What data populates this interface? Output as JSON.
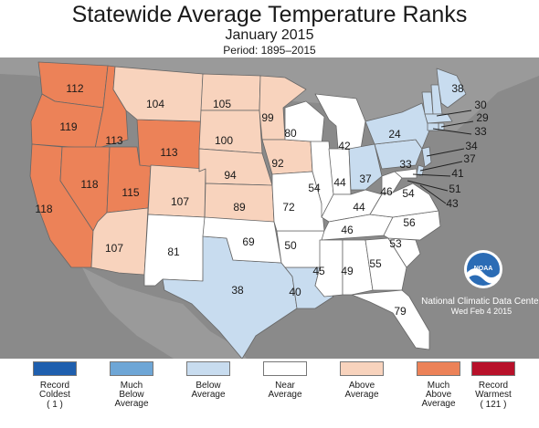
{
  "header": {
    "title": "Statewide Average Temperature Ranks",
    "subtitle": "January 2015",
    "period": "Period: 1895–2015"
  },
  "map_data": {
    "rank_categories": [
      {
        "key": "record_coldest",
        "label": [
          "Record",
          "Coldest"
        ],
        "count": "( 1 )",
        "color": "#1f5fae"
      },
      {
        "key": "much_below",
        "label": [
          "Much",
          "Below",
          "Average"
        ],
        "count": "",
        "color": "#6ea6d6"
      },
      {
        "key": "below",
        "label": [
          "Below",
          "Average"
        ],
        "count": "",
        "color": "#c8dcef"
      },
      {
        "key": "near",
        "label": [
          "Near",
          "Average"
        ],
        "count": "",
        "color": "#ffffff"
      },
      {
        "key": "above",
        "label": [
          "Above",
          "Average"
        ],
        "count": "",
        "color": "#f8d3bd"
      },
      {
        "key": "much_above",
        "label": [
          "Much",
          "Above",
          "Average"
        ],
        "count": "",
        "color": "#ec8258"
      },
      {
        "key": "record_warmest",
        "label": [
          "Record",
          "Warmest"
        ],
        "count": "( 121 )",
        "color": "#b8112a"
      }
    ],
    "states": [
      {
        "state": "WA",
        "rank": "112",
        "category": "much_above"
      },
      {
        "state": "OR",
        "rank": "119",
        "category": "much_above"
      },
      {
        "state": "CA",
        "rank": "118",
        "category": "much_above"
      },
      {
        "state": "ID",
        "rank": "113",
        "category": "much_above"
      },
      {
        "state": "NV",
        "rank": "118",
        "category": "much_above"
      },
      {
        "state": "UT",
        "rank": "115",
        "category": "much_above"
      },
      {
        "state": "WY",
        "rank": "113",
        "category": "much_above"
      },
      {
        "state": "AZ",
        "rank": "107",
        "category": "above"
      },
      {
        "state": "MT",
        "rank": "104",
        "category": "above"
      },
      {
        "state": "CO",
        "rank": "107",
        "category": "above"
      },
      {
        "state": "ND",
        "rank": "105",
        "category": "above"
      },
      {
        "state": "SD",
        "rank": "100",
        "category": "above"
      },
      {
        "state": "NE",
        "rank": "94",
        "category": "above"
      },
      {
        "state": "KS",
        "rank": "89",
        "category": "above"
      },
      {
        "state": "MN",
        "rank": "99",
        "category": "above"
      },
      {
        "state": "IA",
        "rank": "92",
        "category": "above"
      },
      {
        "state": "NM",
        "rank": "81",
        "category": "near"
      },
      {
        "state": "TX",
        "rank": "38",
        "category": "below"
      },
      {
        "state": "OK",
        "rank": "69",
        "category": "near"
      },
      {
        "state": "LA",
        "rank": "40",
        "category": "below"
      },
      {
        "state": "AR",
        "rank": "50",
        "category": "near"
      },
      {
        "state": "MO",
        "rank": "72",
        "category": "near"
      },
      {
        "state": "WI",
        "rank": "80",
        "category": "near"
      },
      {
        "state": "IL",
        "rank": "54",
        "category": "near"
      },
      {
        "state": "MI",
        "rank": "42",
        "category": "near"
      },
      {
        "state": "IN",
        "rank": "44",
        "category": "near"
      },
      {
        "state": "OH",
        "rank": "37",
        "category": "below"
      },
      {
        "state": "KY",
        "rank": "44",
        "category": "near"
      },
      {
        "state": "TN",
        "rank": "46",
        "category": "near"
      },
      {
        "state": "MS",
        "rank": "45",
        "category": "near"
      },
      {
        "state": "AL",
        "rank": "49",
        "category": "near"
      },
      {
        "state": "GA",
        "rank": "55",
        "category": "near"
      },
      {
        "state": "FL",
        "rank": "79",
        "category": "near"
      },
      {
        "state": "SC",
        "rank": "53",
        "category": "near"
      },
      {
        "state": "NC",
        "rank": "56",
        "category": "near"
      },
      {
        "state": "VA",
        "rank": "54",
        "category": "near"
      },
      {
        "state": "WV",
        "rank": "46",
        "category": "near"
      },
      {
        "state": "PA",
        "rank": "33",
        "category": "below"
      },
      {
        "state": "NY",
        "rank": "24",
        "category": "below"
      },
      {
        "state": "VT",
        "rank": "",
        "category": "below"
      },
      {
        "state": "NH",
        "rank": "",
        "category": "below"
      },
      {
        "state": "ME",
        "rank": "38",
        "category": "below"
      },
      {
        "state": "MA",
        "rank": "30",
        "category": "below"
      },
      {
        "state": "RI",
        "rank": "29",
        "category": "below"
      },
      {
        "state": "CT",
        "rank": "33",
        "category": "below"
      },
      {
        "state": "NJ",
        "rank": "34",
        "category": "below"
      },
      {
        "state": "DE",
        "rank": "37",
        "category": "below"
      },
      {
        "state": "MD",
        "rank": "41",
        "category": "near"
      },
      {
        "state": "DC",
        "rank": "51",
        "category": "near"
      },
      {
        "state": "VA_coast",
        "rank": "43",
        "category": "near"
      }
    ]
  },
  "credit": {
    "logo_text": "NOAA",
    "org": "National Climatic Data Center",
    "date": "Wed Feb  4 2015"
  }
}
